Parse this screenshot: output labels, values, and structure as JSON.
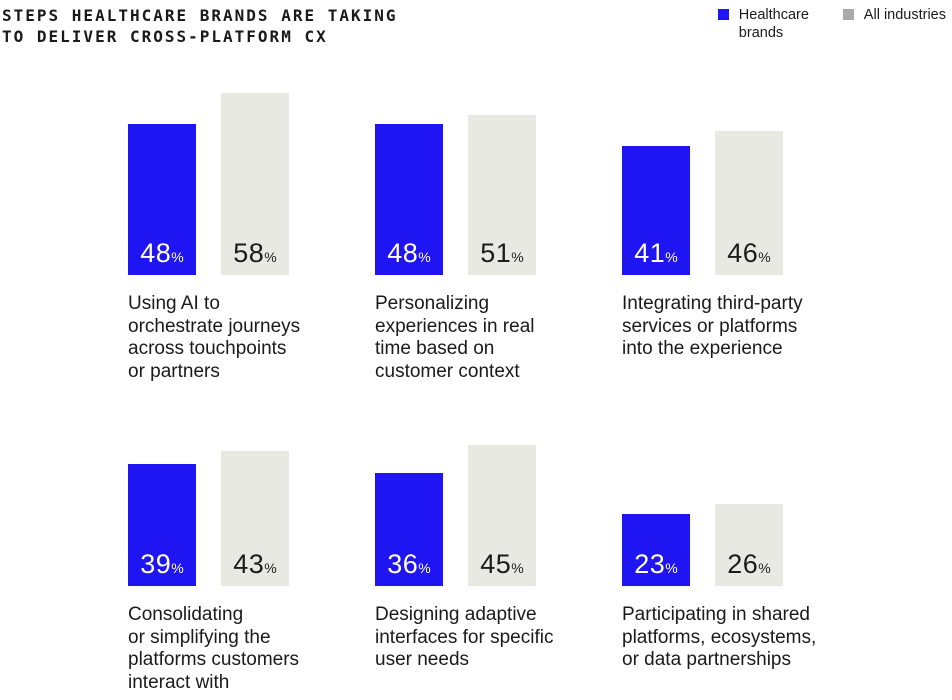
{
  "title": {
    "line1": "STEPS HEALTHCARE BRANDS ARE TAKING",
    "line2": "TO DELIVER CROSS-PLATFORM CX"
  },
  "colors": {
    "healthcare_blue": "#1f14f2",
    "all_industries_bar_gray": "#e9e9e4",
    "all_industries_legend_gray": "#a9a9a9",
    "text_dark": "#1a1a1a",
    "value_on_blue": "#ffffff",
    "background": "#ffffff"
  },
  "chart_data": {
    "type": "bar",
    "title": "STEPS HEALTHCARE BRANDS ARE TAKING TO DELIVER CROSS-PLATFORM CX",
    "unit": "%",
    "categories": [
      "Using AI to\norchestrate journeys\nacross touchpoints\nor partners",
      "Personalizing\nexperiences in real\ntime based on\ncustomer context",
      "Integrating third-party\nservices or platforms\ninto the experience",
      "Consolidating\nor simplifying the\nplatforms customers\ninteract with",
      "Designing adaptive\ninterfaces for specific\nuser needs",
      "Participating in shared\nplatforms, ecosystems,\nor data partnerships"
    ],
    "series": [
      {
        "name": "Healthcare brands",
        "values": [
          48,
          48,
          41,
          39,
          36,
          23
        ]
      },
      {
        "name": "All industries",
        "values": [
          58,
          51,
          46,
          43,
          45,
          26
        ]
      }
    ],
    "ylim": [
      0,
      60
    ],
    "grid": false,
    "legend_position": "top-right",
    "value_labels": "inside-bottom"
  }
}
